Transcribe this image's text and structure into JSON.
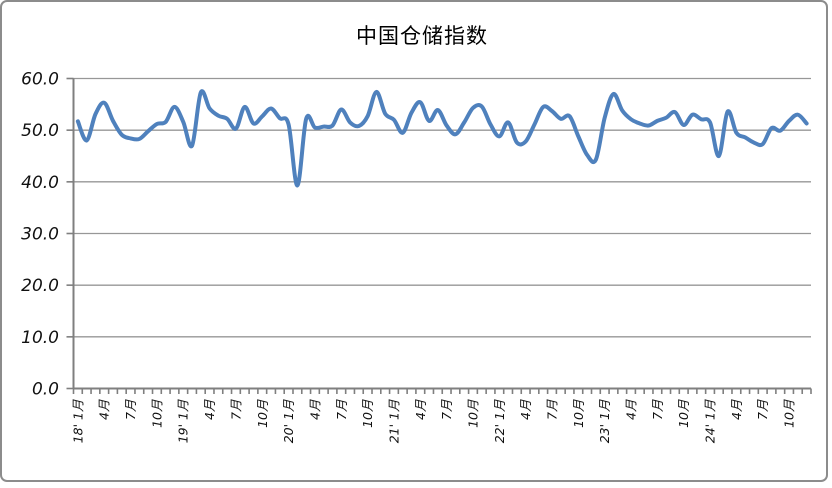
{
  "window": {
    "background": "#ffffff",
    "border_color": "#8c8c8c"
  },
  "chart_data": {
    "type": "line",
    "title": "中国仓储指数",
    "legend": "none",
    "grid": "horizontal",
    "smoothed": true,
    "line_color": "#4F81BD",
    "axis_color": "#7f7f7f",
    "grid_color": "#979797",
    "ylim": [
      0,
      60
    ],
    "y_ticks": [
      0,
      10,
      20,
      30,
      40,
      50,
      60
    ],
    "y_tick_labels": [
      "0.0",
      "10.0",
      "20.0",
      "30.0",
      "40.0",
      "50.0",
      "60.0"
    ],
    "x_label_every": 3,
    "x_tick_labels": [
      "18' 1月",
      "4月",
      "7月",
      "10月",
      "19' 1月",
      "4月",
      "7月",
      "10月",
      "20' 1月",
      "4月",
      "7月",
      "10月",
      "21' 1月",
      "4月",
      "7月",
      "10月",
      "22' 1月",
      "4月",
      "7月",
      "10月",
      "23' 1月",
      "4月",
      "7月",
      "10月",
      "24' 1月",
      "4月",
      "7月",
      "10月"
    ],
    "months": [
      "2018-01",
      "2018-02",
      "2018-03",
      "2018-04",
      "2018-05",
      "2018-06",
      "2018-07",
      "2018-08",
      "2018-09",
      "2018-10",
      "2018-11",
      "2018-12",
      "2019-01",
      "2019-02",
      "2019-03",
      "2019-04",
      "2019-05",
      "2019-06",
      "2019-07",
      "2019-08",
      "2019-09",
      "2019-10",
      "2019-11",
      "2019-12",
      "2020-01",
      "2020-02",
      "2020-03",
      "2020-04",
      "2020-05",
      "2020-06",
      "2020-07",
      "2020-08",
      "2020-09",
      "2020-10",
      "2020-11",
      "2020-12",
      "2021-01",
      "2021-02",
      "2021-03",
      "2021-04",
      "2021-05",
      "2021-06",
      "2021-07",
      "2021-08",
      "2021-09",
      "2021-10",
      "2021-11",
      "2021-12",
      "2022-01",
      "2022-02",
      "2022-03",
      "2022-04",
      "2022-05",
      "2022-06",
      "2022-07",
      "2022-08",
      "2022-09",
      "2022-10",
      "2022-11",
      "2022-12",
      "2023-01",
      "2023-02",
      "2023-03",
      "2023-04",
      "2023-05",
      "2023-06",
      "2023-07",
      "2023-08",
      "2023-09",
      "2023-10",
      "2023-11",
      "2023-12",
      "2024-01",
      "2024-02",
      "2024-03",
      "2024-04",
      "2024-05",
      "2024-06",
      "2024-07",
      "2024-08",
      "2024-09",
      "2024-10",
      "2024-11",
      "2024-12"
    ],
    "series": [
      {
        "name": "中国仓储指数",
        "values": [
          51.7,
          48.0,
          53.1,
          55.3,
          51.8,
          49.1,
          48.4,
          48.3,
          49.8,
          51.2,
          51.6,
          54.5,
          51.6,
          47.0,
          57.3,
          54.2,
          52.8,
          52.2,
          50.3,
          54.5,
          51.3,
          52.7,
          54.2,
          52.3,
          51.1,
          39.3,
          52.2,
          50.5,
          50.7,
          50.9,
          54.0,
          51.5,
          50.8,
          52.7,
          57.4,
          53.2,
          52.0,
          49.5,
          53.4,
          55.4,
          51.8,
          53.9,
          50.9,
          49.2,
          51.5,
          54.3,
          54.6,
          51.1,
          48.8,
          51.5,
          47.6,
          47.8,
          51.1,
          54.5,
          53.7,
          52.2,
          52.7,
          48.8,
          45.2,
          44.3,
          52.4,
          57.0,
          53.8,
          52.1,
          51.3,
          50.9,
          51.8,
          52.4,
          53.5,
          51.0,
          53.0,
          52.1,
          51.5,
          45.0,
          53.6,
          49.5,
          48.6,
          47.6,
          47.3,
          50.4,
          49.9,
          51.8,
          53.0,
          51.3
        ]
      }
    ]
  }
}
